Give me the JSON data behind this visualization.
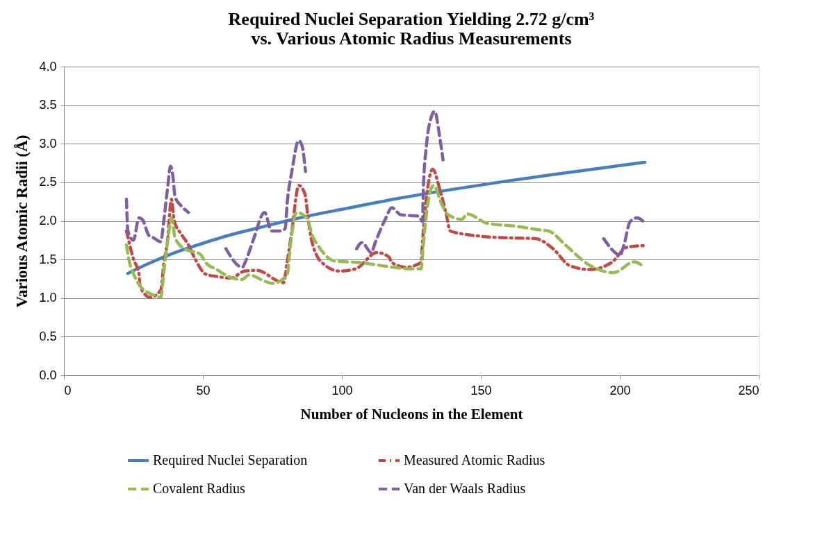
{
  "chart_data": {
    "type": "line",
    "title": "Required Nuclei Separation Yielding 2.72 g/cm³\nvs. Various Atomic Radius Measurements",
    "xlabel": "Number of Nucleons in the Element",
    "ylabel": "Various Atomic Radii (Å)",
    "xlim": [
      0,
      250
    ],
    "xticks": [
      0,
      50,
      100,
      150,
      200,
      250
    ],
    "ylim": [
      0,
      4
    ],
    "yticks": [
      {
        "value": 0,
        "label": "0.0"
      },
      {
        "value": 0.5,
        "label": "0.5"
      },
      {
        "value": 1,
        "label": "1.0"
      },
      {
        "value": 1.5,
        "label": "1.5"
      },
      {
        "value": 2,
        "label": "2.0"
      },
      {
        "value": 2.5,
        "label": "2.5"
      },
      {
        "value": 3,
        "label": "3.0"
      },
      {
        "value": 3.5,
        "label": "3.5"
      },
      {
        "value": 4,
        "label": "4.0"
      }
    ],
    "grid": "y",
    "legend": "bottom",
    "series": [
      {
        "name": "Required Nuclei Separation",
        "color": "#4a7ebb",
        "line_style": "solid",
        "x": [
          23,
          30,
          40,
          50,
          60,
          70,
          80,
          90,
          100,
          120,
          140,
          160,
          180,
          209
        ],
        "values": [
          1.32,
          1.44,
          1.59,
          1.71,
          1.82,
          1.91,
          2.0,
          2.08,
          2.15,
          2.29,
          2.41,
          2.52,
          2.62,
          2.76
        ]
      },
      {
        "name": "Measured Atomic Radius",
        "color": "#be4b48",
        "line_style": "dotted",
        "x": [
          22.5,
          25,
          27,
          27.4,
          31,
          34.8,
          36,
          37.2,
          38.7,
          39.7,
          42.4,
          44.8,
          47.3,
          51,
          55,
          60,
          65,
          69.3,
          79,
          80.3,
          82,
          84.5,
          86.7,
          88,
          89,
          91,
          93.5,
          99,
          105,
          112.6,
          117,
          118,
          123,
          128.5,
          129,
          132.7,
          135,
          137.6,
          139,
          145.7,
          153.8,
          161,
          169.7,
          176,
          182,
          189,
          197,
          202.7,
          208.6
        ],
        "values": [
          1.87,
          1.51,
          1.31,
          1.15,
          1.01,
          1.1,
          1.46,
          1.72,
          2.28,
          2.0,
          1.82,
          1.69,
          1.5,
          1.31,
          1.28,
          1.26,
          1.35,
          1.36,
          1.2,
          1.46,
          1.87,
          2.46,
          2.35,
          1.99,
          1.77,
          1.55,
          1.44,
          1.35,
          1.38,
          1.59,
          1.53,
          1.46,
          1.4,
          1.46,
          1.72,
          2.67,
          2.44,
          2.08,
          1.87,
          1.82,
          1.79,
          1.78,
          1.77,
          1.64,
          1.42,
          1.37,
          1.46,
          1.66,
          1.68
        ]
      },
      {
        "name": "Covalent Radius",
        "color": "#98b954",
        "line_style": "dashed",
        "x": [
          22.5,
          23.3,
          25.2,
          27.4,
          32.2,
          34.8,
          36.2,
          37.5,
          38.7,
          40,
          43.3,
          49,
          51,
          55,
          59.2,
          64,
          66.6,
          72.2,
          75,
          80.3,
          81.5,
          83.7,
          87.4,
          89.4,
          91.8,
          97.5,
          106.5,
          116.3,
          124.4,
          128.5,
          129.3,
          130.5,
          133,
          135.9,
          137.9,
          143.2,
          145,
          152.3,
          162.8,
          171.9,
          174.3,
          180.7,
          188.5,
          197.8,
          205.2,
          208.1
        ],
        "values": [
          1.69,
          1.51,
          1.3,
          1.16,
          1.04,
          1.01,
          1.42,
          1.78,
          2.04,
          1.78,
          1.64,
          1.57,
          1.46,
          1.37,
          1.28,
          1.24,
          1.3,
          1.22,
          1.19,
          1.3,
          1.69,
          2.11,
          2.04,
          1.81,
          1.66,
          1.48,
          1.46,
          1.41,
          1.38,
          1.38,
          1.69,
          2.11,
          2.46,
          2.22,
          2.09,
          2.02,
          2.09,
          1.97,
          1.93,
          1.88,
          1.87,
          1.68,
          1.44,
          1.33,
          1.47,
          1.42
        ]
      },
      {
        "name": "Van der Waals Radius",
        "color": "#7d60a0",
        "line_style": "dashed",
        "x": [
          22.5,
          23,
          25,
          27,
          28.2,
          30.6,
          32.3,
          34.8,
          36,
          37.2,
          38.4,
          39.2,
          40,
          42.1,
          44.8,
          50,
          58.3,
          64.2,
          65.4,
          68.1,
          72.2,
          74.7,
          77.9,
          79.6,
          80.3,
          82,
          84.5,
          85.7,
          86.9,
          95,
          105.3,
          107.2,
          110.6,
          112,
          115.6,
          118,
          121.2,
          127.8,
          129,
          129.3,
          130.5,
          132.2,
          133.4,
          135.1,
          136.4,
          165,
          194.2,
          198.3,
          200,
          201.5,
          203.7,
          206.2,
          208.6
        ],
        "values": [
          2.28,
          1.87,
          1.75,
          2.04,
          2.02,
          1.81,
          1.78,
          1.73,
          2.02,
          2.4,
          2.71,
          2.58,
          2.31,
          2.2,
          2.11,
          null,
          1.64,
          1.4,
          1.48,
          1.75,
          2.11,
          1.87,
          1.87,
          1.9,
          2.22,
          2.64,
          3.04,
          2.97,
          2.64,
          null,
          1.64,
          1.72,
          1.59,
          1.72,
          2.02,
          2.17,
          2.08,
          2.06,
          1.99,
          2.4,
          3.0,
          3.35,
          3.42,
          3.11,
          2.79,
          null,
          1.77,
          1.59,
          1.55,
          1.69,
          1.99,
          2.04,
          1.99
        ]
      }
    ]
  }
}
